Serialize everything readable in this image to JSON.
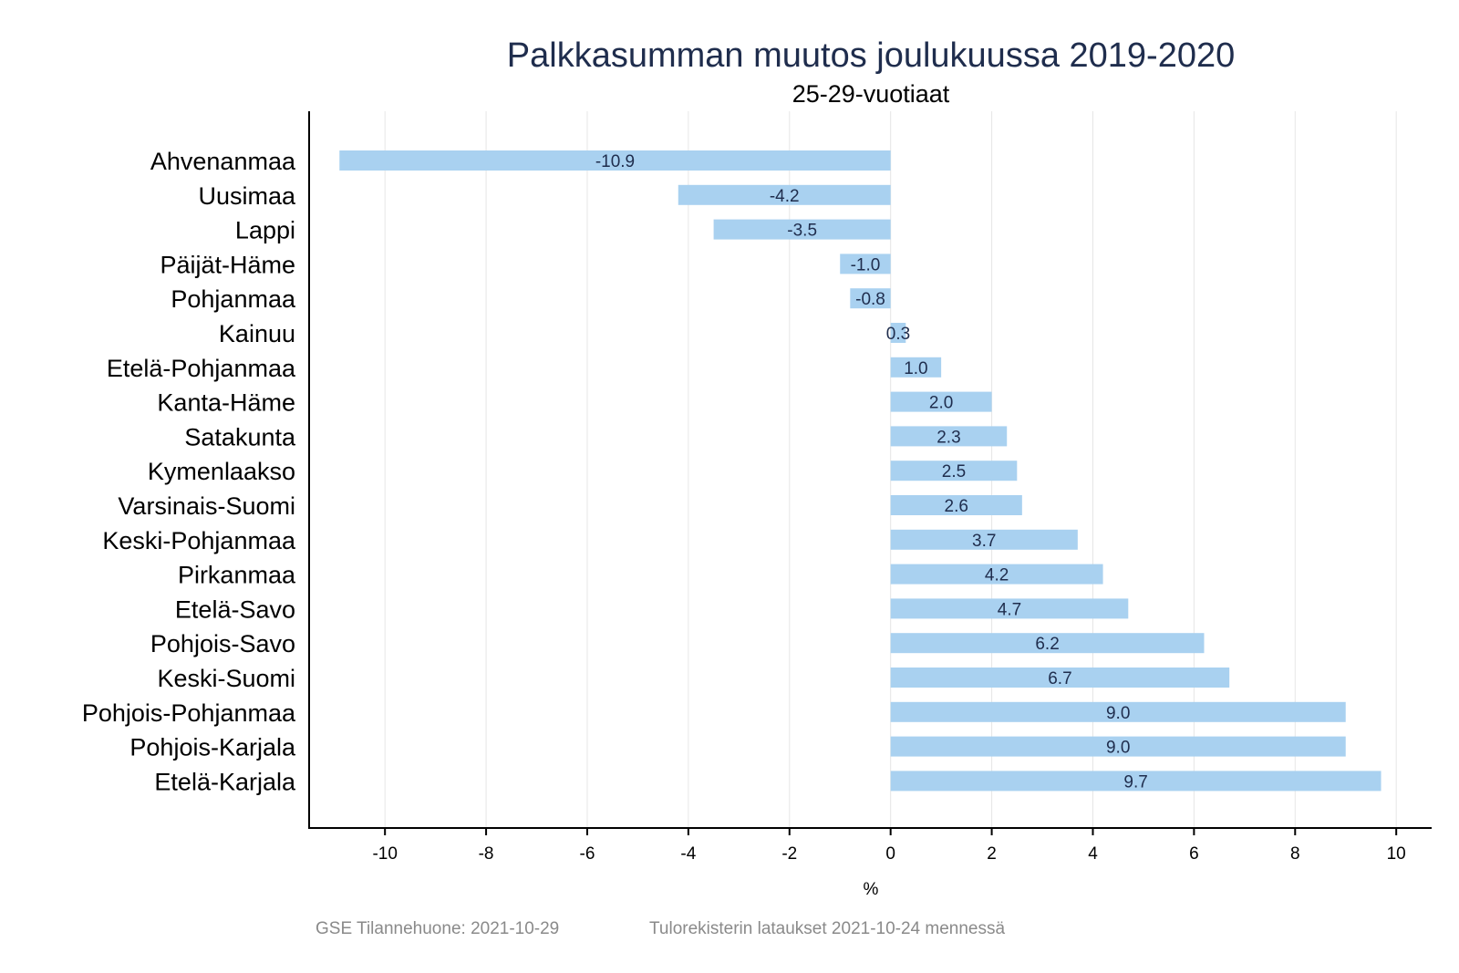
{
  "chart_data": {
    "type": "bar",
    "orientation": "horizontal",
    "title": "Palkkasumman muutos joulukuussa 2019-2020",
    "subtitle": "25-29-vuotiaat",
    "xlabel": "%",
    "ylabel": "",
    "xlim": [
      -11.5,
      10.7
    ],
    "xticks": [
      -10,
      -8,
      -6,
      -4,
      -2,
      0,
      2,
      4,
      6,
      8,
      10
    ],
    "xtick_labels": [
      "-10",
      "-8",
      "-6",
      "-4",
      "-2",
      "0",
      "2",
      "4",
      "6",
      "8",
      "10"
    ],
    "grid": true,
    "categories": [
      "Ahvenanmaa",
      "Uusimaa",
      "Lappi",
      "Päijät-Häme",
      "Pohjanmaa",
      "Kainuu",
      "Etelä-Pohjanmaa",
      "Kanta-Häme",
      "Satakunta",
      "Kymenlaakso",
      "Varsinais-Suomi",
      "Keski-Pohjanmaa",
      "Pirkanmaa",
      "Etelä-Savo",
      "Pohjois-Savo",
      "Keski-Suomi",
      "Pohjois-Pohjanmaa",
      "Pohjois-Karjala",
      "Etelä-Karjala"
    ],
    "values": [
      -10.9,
      -4.2,
      -3.5,
      -1.0,
      -0.8,
      0.3,
      1.0,
      2.0,
      2.3,
      2.5,
      2.6,
      3.7,
      4.2,
      4.7,
      6.2,
      6.7,
      9.0,
      9.0,
      9.7
    ],
    "value_labels": [
      "-10.9",
      "-4.2",
      "-3.5",
      "-1.0",
      "-0.8",
      "0.3",
      "1.0",
      "2.0",
      "2.3",
      "2.5",
      "2.6",
      "3.7",
      "4.2",
      "4.7",
      "6.2",
      "6.7",
      "9.0",
      "9.0",
      "9.7"
    ],
    "bar_color": "#a9d1f0"
  },
  "footer": {
    "source": "GSE Tilannehuone: 2021-10-29",
    "note": "Tulorekisterin lataukset 2021-10-24 mennessä"
  }
}
